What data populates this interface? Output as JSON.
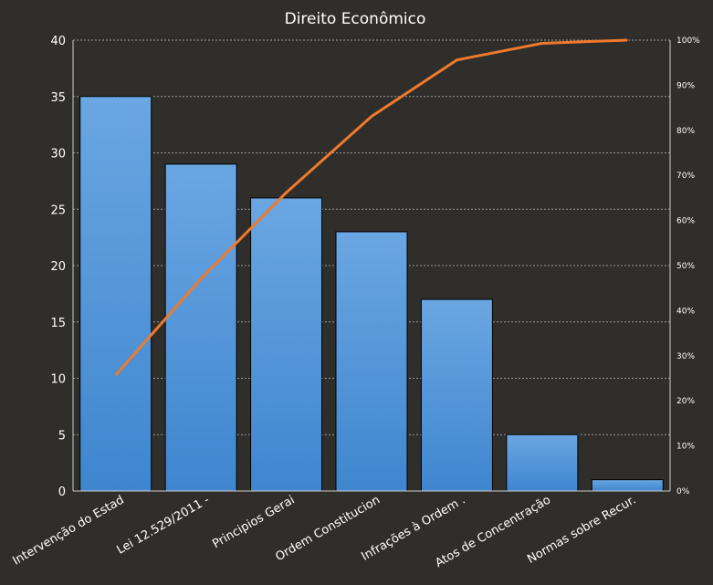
{
  "chart_data": {
    "type": "bar",
    "title": "Direito Econômico",
    "categories": [
      "Intervenção do Estad",
      "Lei 12.529/2011 -",
      "Principios Gerai",
      "Ordem Constitucion",
      "Infrações à Ordem .",
      "Atos de Concentração",
      "Normas sobre Recur."
    ],
    "series": [
      {
        "type": "bar",
        "values": [
          35,
          29,
          26,
          23,
          17,
          5,
          1
        ],
        "color": "#4a8fd6"
      },
      {
        "type": "line",
        "axis": "right",
        "values": [
          25.7,
          47.1,
          66.2,
          83.1,
          95.6,
          99.3,
          100
        ],
        "color": "#e8772e"
      }
    ],
    "ylim": [
      0,
      40
    ],
    "yticks": [
      "0",
      "5",
      "10",
      "15",
      "20",
      "25",
      "30",
      "35",
      "40"
    ],
    "y2lim": [
      0,
      100
    ],
    "y2ticks": [
      "0%",
      "10%",
      "20%",
      "30%",
      "40%",
      "50%",
      "60%",
      "70%",
      "80%",
      "90%",
      "100%"
    ],
    "grid": true,
    "legend": "none"
  }
}
